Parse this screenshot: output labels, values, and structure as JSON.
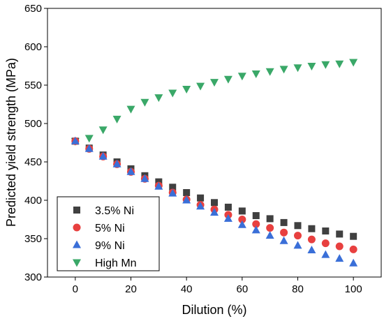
{
  "chart_data": {
    "type": "scatter",
    "xlabel": "Dilution (%)",
    "ylabel": "Predicted yield strength (MPa)",
    "xlim": [
      -10,
      110
    ],
    "ylim": [
      300,
      650
    ],
    "xticks": [
      0,
      20,
      40,
      60,
      80,
      100
    ],
    "yticks": [
      300,
      350,
      400,
      450,
      500,
      550,
      600,
      650
    ],
    "grid": false,
    "legend_position": "bottom-left",
    "x": [
      0,
      5,
      10,
      15,
      20,
      25,
      30,
      35,
      40,
      45,
      50,
      55,
      60,
      65,
      70,
      75,
      80,
      85,
      90,
      95,
      100
    ],
    "series": [
      {
        "name": "3.5% Ni",
        "marker": "square",
        "color": "#404040",
        "values": [
          477,
          468,
          459,
          450,
          441,
          432,
          424,
          417,
          410,
          403,
          397,
          391,
          386,
          380,
          376,
          371,
          367,
          363,
          360,
          356,
          353
        ]
      },
      {
        "name": "5% Ni",
        "marker": "circle",
        "color": "#e8403f",
        "values": [
          477,
          467,
          457,
          447,
          437,
          428,
          419,
          410,
          401,
          394,
          388,
          381,
          375,
          369,
          364,
          358,
          354,
          349,
          344,
          340,
          336
        ]
      },
      {
        "name": "9% Ni",
        "marker": "triangle-up",
        "color": "#3a6fd8",
        "values": [
          477,
          467,
          457,
          447,
          437,
          428,
          418,
          409,
          400,
          392,
          384,
          376,
          368,
          361,
          354,
          347,
          341,
          335,
          329,
          324,
          318
        ]
      },
      {
        "name": "High Mn",
        "marker": "triangle-down",
        "color": "#3aa868",
        "values": [
          477,
          481,
          492,
          506,
          519,
          528,
          534,
          540,
          545,
          549,
          554,
          558,
          562,
          565,
          568,
          571,
          573,
          575,
          577,
          578,
          580
        ]
      }
    ]
  }
}
